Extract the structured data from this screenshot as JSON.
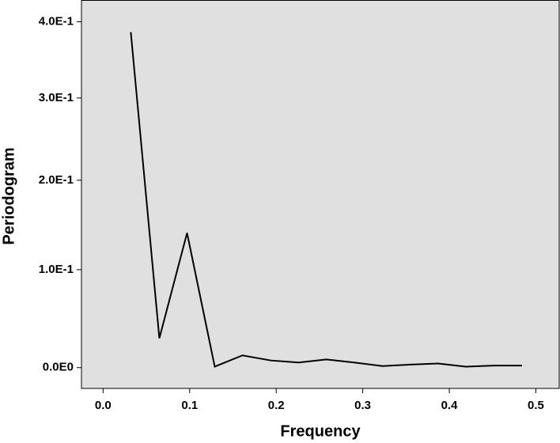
{
  "chart_data": {
    "type": "line",
    "x_label": "Frequency",
    "y_label": "Periodogram",
    "x": [
      0.032,
      0.065,
      0.097,
      0.129,
      0.161,
      0.194,
      0.226,
      0.258,
      0.29,
      0.323,
      0.355,
      0.387,
      0.419,
      0.452,
      0.484
    ],
    "series": [
      {
        "color": "#000000",
        "values": [
          0.386,
          0.029,
          0.14,
          0.001,
          0.012,
          0.007,
          0.005,
          0.008,
          0.005,
          0.0015,
          0.003,
          0.004,
          0.001,
          0.002,
          0.002
        ]
      }
    ],
    "xlim": [
      -0.025,
      0.527
    ],
    "xticks": [
      {
        "value": 0,
        "label": "0.0"
      },
      0.1,
      0.2,
      0.3,
      0.4,
      0.5
    ],
    "ylim": [
      -0.02,
      0.43
    ],
    "yticks": [
      {
        "value": 0,
        "label": "0.0E0"
      },
      {
        "value": 0.1,
        "label": "1.0E-1"
      },
      {
        "value": 0.2,
        "label": "2.0E-1"
      },
      {
        "value": 0.3,
        "label": "3.0E-1"
      },
      {
        "value": 0.4,
        "label": "4.0E-1"
      }
    ],
    "yscale": "log"
  }
}
